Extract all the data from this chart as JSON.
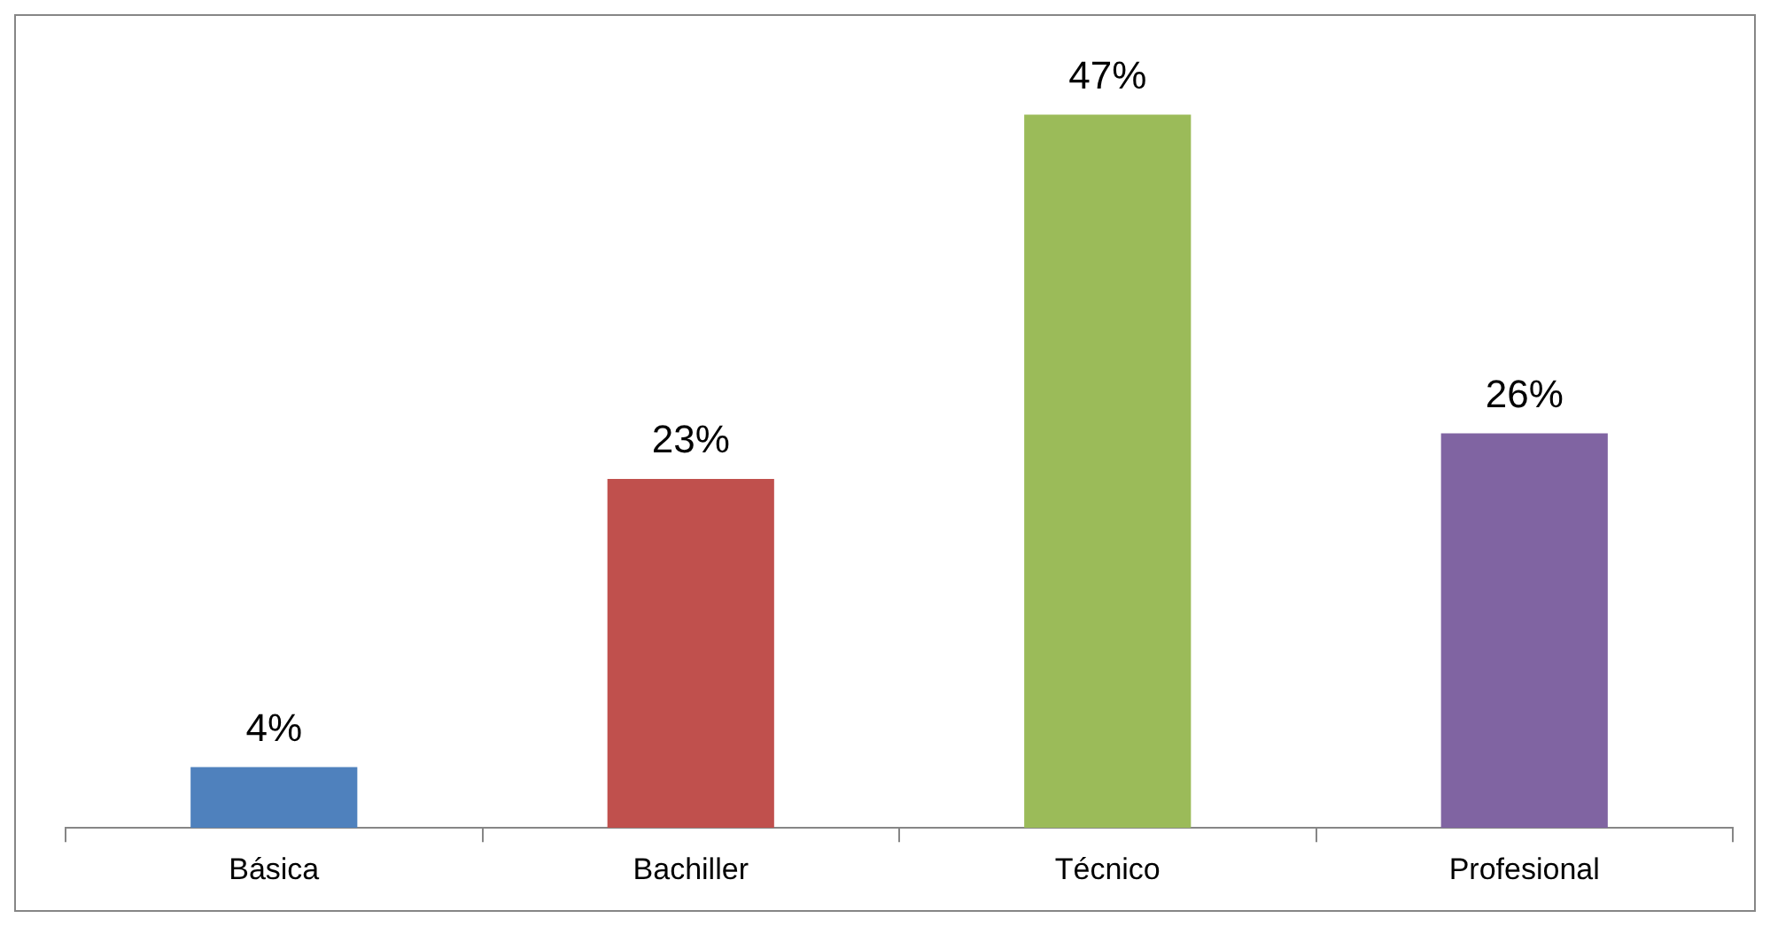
{
  "chart_data": {
    "type": "bar",
    "categories": [
      "Básica",
      "Bachiller",
      "Técnico",
      "Profesional"
    ],
    "values": [
      4,
      23,
      47,
      26
    ],
    "value_labels": [
      "4%",
      "23%",
      "47%",
      "26%"
    ],
    "colors": [
      "#4f81bd",
      "#c0504d",
      "#9bbb59",
      "#8064a2"
    ],
    "grid": false,
    "legend": false,
    "tick_labels": "x"
  }
}
